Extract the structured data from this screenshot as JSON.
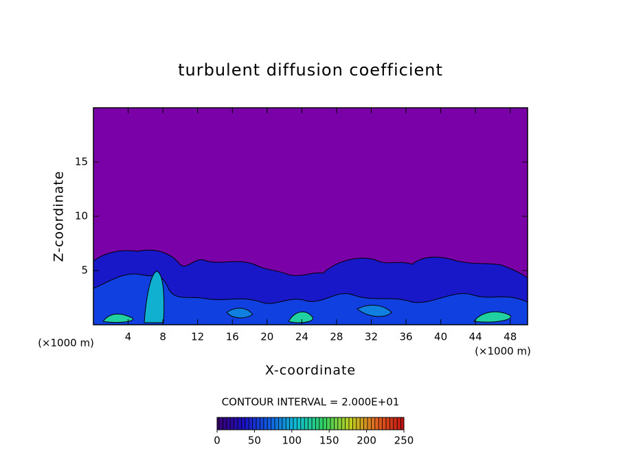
{
  "chart_data": {
    "type": "contour",
    "title": "turbulent diffusion coefficient",
    "x_label": "X-coordinate",
    "y_label": "Z-coordinate",
    "x_unit": "(×1000 m)",
    "y_unit": "(×1000 m)",
    "xlim": [
      0,
      50
    ],
    "ylim": [
      0,
      20
    ],
    "xticks": [
      4,
      8,
      12,
      16,
      20,
      24,
      28,
      32,
      36,
      40,
      44,
      48
    ],
    "yticks": [
      5,
      10,
      15
    ],
    "background_color": "#7a00a8",
    "contour_interval_label": "CONTOUR INTERVAL = 2.000E+01",
    "colorbar": {
      "lim": [
        0,
        250
      ],
      "ticks": [
        0,
        50,
        100,
        150,
        200,
        250
      ],
      "colors": [
        "#3a0070",
        "#1a10c0",
        "#1060e0",
        "#10c0d0",
        "#30d060",
        "#c0d020",
        "#e06020",
        "#c01010"
      ]
    }
  }
}
